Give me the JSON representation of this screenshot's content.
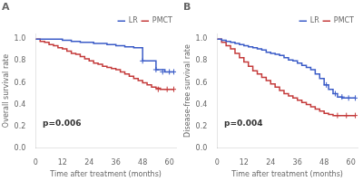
{
  "chart_data": [
    {
      "type": "line",
      "title": "A",
      "xlabel": "Time after treatment (months)",
      "ylabel": "Overall survival rate",
      "annotations": [
        "p=0.006"
      ],
      "xlim": [
        0,
        63
      ],
      "ylim": [
        0.0,
        1.05
      ],
      "xticks": [
        0,
        12,
        24,
        36,
        48,
        60
      ],
      "yticks": [
        {
          "value": 0.0,
          "label": "0.0"
        },
        0.2,
        0.4,
        0.6,
        0.8,
        {
          "value": 1.0,
          "label": "1.0"
        }
      ],
      "grid": false,
      "legend": "upper right",
      "series": [
        {
          "name": "LR",
          "color": "#3a5bc7",
          "line_style": "steps",
          "x": [
            0,
            2,
            4,
            6,
            8,
            10,
            12,
            14,
            16,
            18,
            20,
            22,
            24,
            26,
            28,
            30,
            32,
            34,
            36,
            38,
            40,
            42,
            44,
            46,
            48,
            50,
            52,
            54,
            56,
            58,
            60,
            62
          ],
          "values": [
            1.0,
            1.0,
            1.0,
            1.0,
            1.0,
            1.0,
            0.99,
            0.99,
            0.98,
            0.98,
            0.97,
            0.97,
            0.97,
            0.96,
            0.96,
            0.96,
            0.95,
            0.95,
            0.94,
            0.94,
            0.93,
            0.93,
            0.92,
            0.92,
            0.8,
            0.8,
            0.8,
            0.72,
            0.72,
            0.7,
            0.7,
            0.7
          ],
          "censor_x": [
            48,
            54,
            57,
            60,
            62
          ],
          "censor_values": [
            0.8,
            0.72,
            0.7,
            0.7,
            0.7
          ]
        },
        {
          "name": "PMCT",
          "color": "#c43a3a",
          "line_style": "steps",
          "x": [
            0,
            2,
            4,
            6,
            8,
            10,
            12,
            14,
            16,
            18,
            20,
            22,
            24,
            26,
            28,
            30,
            32,
            34,
            36,
            38,
            40,
            42,
            44,
            46,
            48,
            50,
            52,
            54,
            56,
            58,
            60,
            62
          ],
          "values": [
            1.0,
            0.98,
            0.97,
            0.95,
            0.94,
            0.92,
            0.91,
            0.89,
            0.87,
            0.86,
            0.84,
            0.82,
            0.8,
            0.78,
            0.77,
            0.75,
            0.74,
            0.73,
            0.72,
            0.7,
            0.68,
            0.66,
            0.64,
            0.62,
            0.6,
            0.58,
            0.56,
            0.55,
            0.54,
            0.54,
            0.54,
            0.54
          ],
          "censor_x": [
            55,
            59,
            62
          ],
          "censor_values": [
            0.54,
            0.54,
            0.54
          ]
        }
      ]
    },
    {
      "type": "line",
      "title": "B",
      "xlabel": "Time after treatment (months)",
      "ylabel": "Disease-free survival rate",
      "annotations": [
        "p=0.004"
      ],
      "xlim": [
        0,
        63
      ],
      "ylim": [
        0.0,
        1.05
      ],
      "xticks": [
        0,
        12,
        24,
        36,
        48,
        60
      ],
      "yticks": [
        {
          "value": 0.0,
          "label": "0.0"
        },
        0.2,
        0.4,
        0.6,
        0.8,
        {
          "value": 1.0,
          "label": "1.0"
        }
      ],
      "grid": false,
      "legend": "upper right",
      "series": [
        {
          "name": "LR",
          "color": "#3a5bc7",
          "line_style": "steps",
          "x": [
            0,
            2,
            4,
            6,
            8,
            10,
            12,
            14,
            16,
            18,
            20,
            22,
            24,
            26,
            28,
            30,
            32,
            34,
            36,
            38,
            40,
            42,
            44,
            46,
            48,
            50,
            52,
            54,
            56,
            58,
            60,
            62
          ],
          "values": [
            1.0,
            0.99,
            0.98,
            0.97,
            0.96,
            0.95,
            0.94,
            0.93,
            0.92,
            0.91,
            0.9,
            0.88,
            0.87,
            0.86,
            0.85,
            0.83,
            0.81,
            0.8,
            0.78,
            0.76,
            0.74,
            0.72,
            0.68,
            0.64,
            0.58,
            0.54,
            0.5,
            0.47,
            0.46,
            0.46,
            0.46,
            0.46
          ],
          "censor_x": [
            49,
            53,
            56,
            59,
            62
          ],
          "censor_values": [
            0.58,
            0.5,
            0.47,
            0.46,
            0.46
          ]
        },
        {
          "name": "PMCT",
          "color": "#c43a3a",
          "line_style": "steps",
          "x": [
            0,
            2,
            4,
            6,
            8,
            10,
            12,
            14,
            16,
            18,
            20,
            22,
            24,
            26,
            28,
            30,
            32,
            34,
            36,
            38,
            40,
            42,
            44,
            46,
            48,
            50,
            52,
            54,
            56,
            58,
            60,
            62
          ],
          "values": [
            1.0,
            0.97,
            0.94,
            0.91,
            0.87,
            0.83,
            0.79,
            0.75,
            0.71,
            0.68,
            0.65,
            0.62,
            0.59,
            0.56,
            0.53,
            0.5,
            0.48,
            0.46,
            0.44,
            0.42,
            0.4,
            0.38,
            0.36,
            0.34,
            0.32,
            0.31,
            0.3,
            0.3,
            0.3,
            0.3,
            0.3,
            0.3
          ],
          "censor_x": [
            54,
            58,
            62
          ],
          "censor_values": [
            0.3,
            0.3,
            0.3
          ]
        }
      ]
    }
  ]
}
